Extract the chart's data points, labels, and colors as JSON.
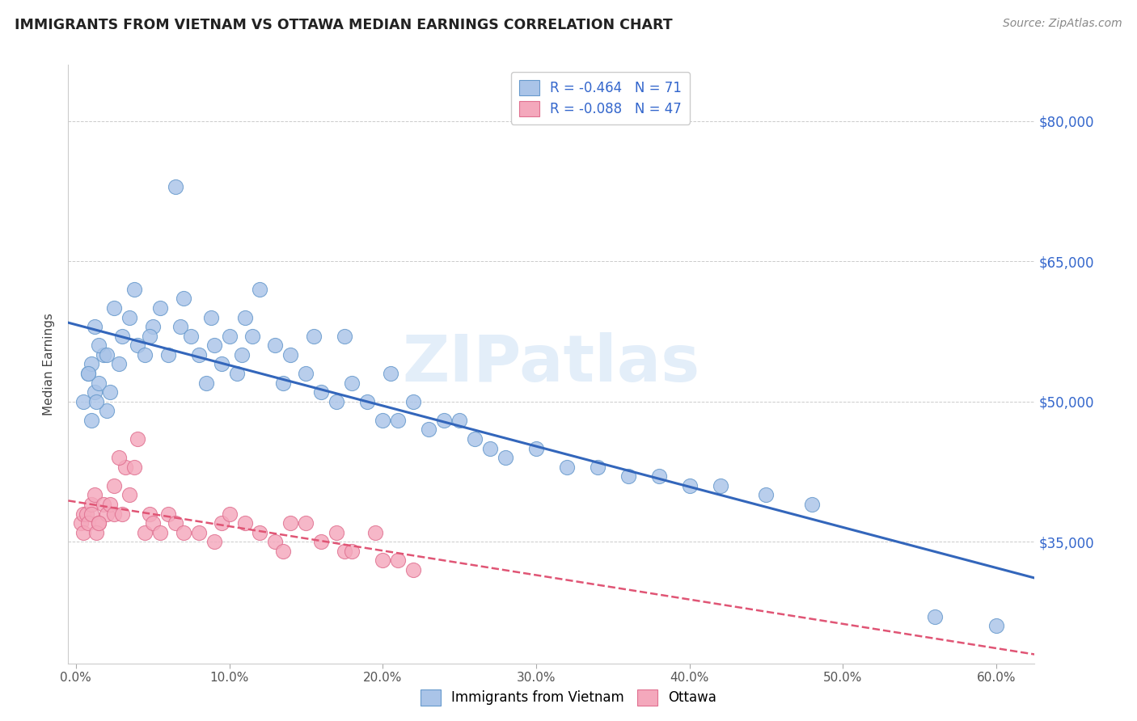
{
  "title": "IMMIGRANTS FROM VIETNAM VS OTTAWA MEDIAN EARNINGS CORRELATION CHART",
  "source": "Source: ZipAtlas.com",
  "xlabel_ticks": [
    "0.0%",
    "10.0%",
    "20.0%",
    "30.0%",
    "40.0%",
    "50.0%",
    "60.0%"
  ],
  "xlabel_tick_vals": [
    0.0,
    0.1,
    0.2,
    0.3,
    0.4,
    0.5,
    0.6
  ],
  "ylabel": "Median Earnings",
  "ytick_positions": [
    35000,
    50000,
    65000,
    80000
  ],
  "ytick_labels": [
    "$35,000",
    "$50,000",
    "$65,000",
    "$80,000"
  ],
  "ylim": [
    22000,
    86000
  ],
  "xlim": [
    -0.005,
    0.625
  ],
  "watermark": "ZIPatlas",
  "blue_scatter_color": "#aac4e8",
  "pink_scatter_color": "#f4a8bc",
  "blue_edge_color": "#6699cc",
  "pink_edge_color": "#e07090",
  "trendline_blue_color": "#3366bb",
  "trendline_pink_color": "#e05575",
  "grid_color": "#cccccc",
  "background_color": "#ffffff",
  "title_color": "#222222",
  "source_color": "#888888",
  "ylabel_color": "#444444",
  "right_tick_color": "#3366cc",
  "bottom_tick_color": "#555555",
  "legend_text_color": "#3366cc",
  "bottom_legend_text_color": "#555555",
  "blue_scatter_x": [
    0.005,
    0.008,
    0.01,
    0.012,
    0.01,
    0.015,
    0.018,
    0.02,
    0.022,
    0.013,
    0.008,
    0.012,
    0.015,
    0.02,
    0.025,
    0.03,
    0.028,
    0.035,
    0.04,
    0.038,
    0.045,
    0.05,
    0.048,
    0.055,
    0.06,
    0.065,
    0.07,
    0.068,
    0.075,
    0.08,
    0.085,
    0.09,
    0.088,
    0.095,
    0.1,
    0.105,
    0.11,
    0.108,
    0.115,
    0.12,
    0.13,
    0.14,
    0.135,
    0.15,
    0.16,
    0.155,
    0.17,
    0.18,
    0.175,
    0.19,
    0.2,
    0.21,
    0.205,
    0.22,
    0.23,
    0.24,
    0.25,
    0.26,
    0.27,
    0.28,
    0.3,
    0.32,
    0.34,
    0.36,
    0.38,
    0.4,
    0.42,
    0.45,
    0.48,
    0.56,
    0.6
  ],
  "blue_scatter_y": [
    50000,
    53000,
    48000,
    51000,
    54000,
    52000,
    55000,
    49000,
    51000,
    50000,
    53000,
    58000,
    56000,
    55000,
    60000,
    57000,
    54000,
    59000,
    56000,
    62000,
    55000,
    58000,
    57000,
    60000,
    55000,
    73000,
    61000,
    58000,
    57000,
    55000,
    52000,
    56000,
    59000,
    54000,
    57000,
    53000,
    59000,
    55000,
    57000,
    62000,
    56000,
    55000,
    52000,
    53000,
    51000,
    57000,
    50000,
    52000,
    57000,
    50000,
    48000,
    48000,
    53000,
    50000,
    47000,
    48000,
    48000,
    46000,
    45000,
    44000,
    45000,
    43000,
    43000,
    42000,
    42000,
    41000,
    41000,
    40000,
    39000,
    27000,
    26000
  ],
  "pink_scatter_x": [
    0.003,
    0.005,
    0.007,
    0.005,
    0.008,
    0.01,
    0.012,
    0.01,
    0.015,
    0.013,
    0.018,
    0.02,
    0.015,
    0.022,
    0.025,
    0.025,
    0.03,
    0.032,
    0.028,
    0.035,
    0.04,
    0.038,
    0.045,
    0.048,
    0.05,
    0.055,
    0.06,
    0.065,
    0.07,
    0.08,
    0.09,
    0.095,
    0.1,
    0.11,
    0.12,
    0.13,
    0.135,
    0.14,
    0.15,
    0.16,
    0.17,
    0.175,
    0.18,
    0.195,
    0.2,
    0.21,
    0.22
  ],
  "pink_scatter_y": [
    37000,
    38000,
    38000,
    36000,
    37000,
    39000,
    40000,
    38000,
    37000,
    36000,
    39000,
    38000,
    37000,
    39000,
    38000,
    41000,
    38000,
    43000,
    44000,
    40000,
    46000,
    43000,
    36000,
    38000,
    37000,
    36000,
    38000,
    37000,
    36000,
    36000,
    35000,
    37000,
    38000,
    37000,
    36000,
    35000,
    34000,
    37000,
    37000,
    35000,
    36000,
    34000,
    34000,
    36000,
    33000,
    33000,
    32000
  ]
}
